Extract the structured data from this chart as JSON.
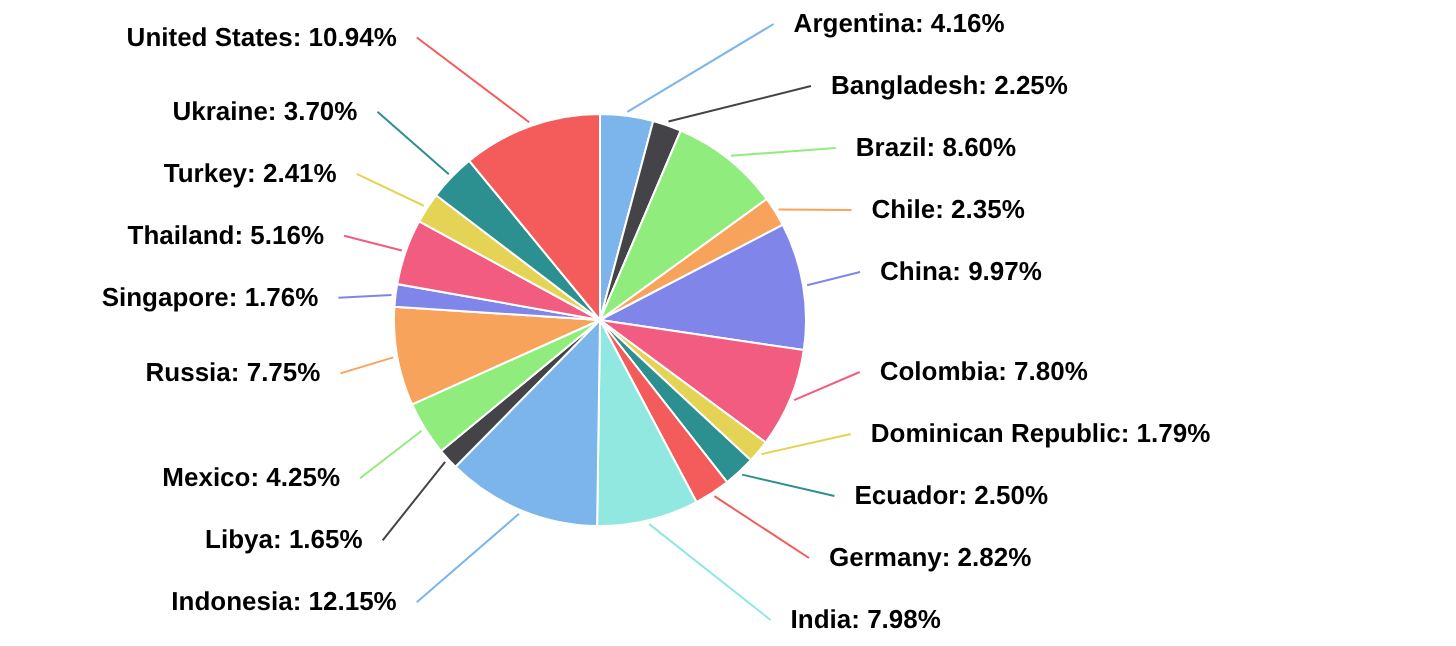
{
  "chart_data": {
    "type": "pie",
    "categories": [
      "Argentina",
      "Bangladesh",
      "Brazil",
      "Chile",
      "China",
      "Colombia",
      "Dominican Republic",
      "Ecuador",
      "Germany",
      "India",
      "Indonesia",
      "Libya",
      "Mexico",
      "Russia",
      "Singapore",
      "Thailand",
      "Turkey",
      "Ukraine",
      "United States"
    ],
    "values": [
      4.16,
      2.25,
      8.6,
      2.35,
      9.97,
      7.8,
      1.79,
      2.5,
      2.82,
      7.98,
      12.15,
      1.65,
      4.25,
      7.75,
      1.76,
      5.16,
      2.41,
      3.7,
      10.94
    ],
    "value_labels": [
      "4.16%",
      "2.25%",
      "8.60%",
      "2.35%",
      "9.97%",
      "7.80%",
      "1.79%",
      "2.50%",
      "2.82%",
      "7.98%",
      "12.15%",
      "1.65%",
      "4.25%",
      "7.75%",
      "1.76%",
      "5.16%",
      "2.41%",
      "3.70%",
      "10.94%"
    ],
    "colors": [
      "#7cb5ec",
      "#434348",
      "#90ed7d",
      "#f7a35c",
      "#8085e9",
      "#f15c80",
      "#e4d354",
      "#2b908f",
      "#f45b5b",
      "#91e8e1",
      "#7cb5ec",
      "#434348",
      "#90ed7d",
      "#f7a35c",
      "#8085e9",
      "#f15c80",
      "#e4d354",
      "#2b908f",
      "#f45b5b"
    ]
  }
}
